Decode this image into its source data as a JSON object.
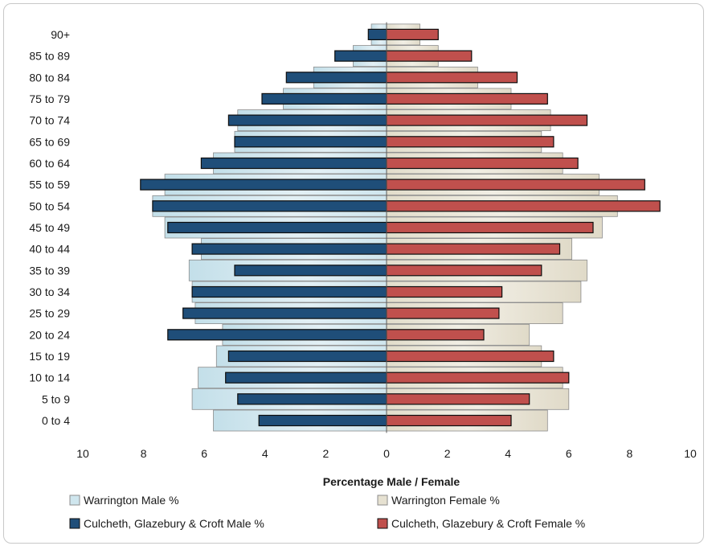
{
  "chart_data": {
    "type": "bar",
    "orientation": "horizontal",
    "layout": "population-pyramid",
    "categories": [
      "0 to 4",
      "5 to 9",
      "10 to 14",
      "15 to 19",
      "20 to 24",
      "25 to 29",
      "30 to 34",
      "35 to 39",
      "40 to 44",
      "45 to 49",
      "50 to 54",
      "55 to 59",
      "60 to 64",
      "65 to 69",
      "70 to 74",
      "75 to 79",
      "80 to 84",
      "85 to 89",
      "90+"
    ],
    "xlabel": "Percentage Male / Female",
    "ylabel": "",
    "xlim": [
      -10,
      10
    ],
    "x_ticks": [
      -10,
      -8,
      -6,
      -4,
      -2,
      0,
      2,
      4,
      6,
      8,
      10
    ],
    "x_tick_labels": [
      "10",
      "8",
      "6",
      "4",
      "2",
      "0",
      "2",
      "4",
      "6",
      "8",
      "10"
    ],
    "grid": false,
    "legend_position": "bottom",
    "series": [
      {
        "name": "Warrington Male %",
        "side": "left",
        "style": "wide",
        "color": "#cfe6ee",
        "values": [
          5.7,
          6.4,
          6.2,
          5.6,
          5.4,
          6.3,
          6.4,
          6.5,
          6.1,
          7.3,
          7.7,
          7.3,
          5.7,
          5.0,
          4.9,
          3.4,
          2.4,
          1.1,
          0.5
        ]
      },
      {
        "name": "Warrington Female %",
        "side": "right",
        "style": "wide",
        "color": "#e6e1d1",
        "values": [
          5.3,
          6.0,
          5.8,
          5.1,
          4.7,
          5.8,
          6.4,
          6.6,
          6.1,
          7.1,
          7.6,
          7.0,
          5.8,
          5.1,
          5.4,
          4.1,
          3.0,
          1.7,
          1.1
        ]
      },
      {
        "name": "Culcheth, Glazebury & Croft Male %",
        "side": "left",
        "style": "narrow",
        "color": "#1f4e79",
        "values": [
          4.2,
          4.9,
          5.3,
          5.2,
          7.2,
          6.7,
          6.4,
          5.0,
          6.4,
          7.2,
          7.7,
          8.1,
          6.1,
          5.0,
          5.2,
          4.1,
          3.3,
          1.7,
          0.6
        ]
      },
      {
        "name": "Culcheth, Glazebury & Croft Female %",
        "side": "right",
        "style": "narrow",
        "color": "#c0504d",
        "values": [
          4.1,
          4.7,
          6.0,
          5.5,
          3.2,
          3.7,
          3.8,
          5.1,
          5.7,
          6.8,
          9.0,
          8.5,
          6.3,
          5.5,
          6.6,
          5.3,
          4.3,
          2.8,
          1.7
        ]
      }
    ]
  }
}
